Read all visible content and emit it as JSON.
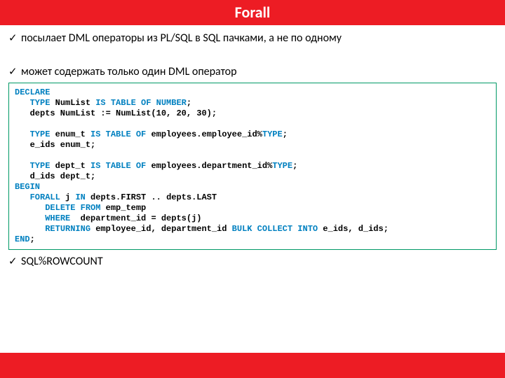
{
  "colors": {
    "accent": "#ed1c24",
    "code_border": "#009966",
    "keyword": "#0080c0",
    "text": "#000000",
    "background": "#ffffff"
  },
  "title": "Forall",
  "bullets": [
    "посылает DML операторы из PL/SQL в SQL пачками, а не по одному",
    "может содержать только один DML оператор",
    "SQL%ROWCOUNT"
  ],
  "code": {
    "lines": [
      [
        [
          "kw",
          "DECLARE"
        ]
      ],
      [
        [
          "plain",
          "   "
        ],
        [
          "kw",
          "TYPE"
        ],
        [
          "plain",
          " NumList "
        ],
        [
          "kw",
          "IS TABLE OF NUMBER"
        ],
        [
          "plain",
          ";"
        ]
      ],
      [
        [
          "plain",
          "   depts NumList := NumList(10, 20, 30);"
        ]
      ],
      [
        [
          "plain",
          ""
        ]
      ],
      [
        [
          "plain",
          "   "
        ],
        [
          "kw",
          "TYPE"
        ],
        [
          "plain",
          " enum_t "
        ],
        [
          "kw",
          "IS TABLE OF"
        ],
        [
          "plain",
          " employees.employee_id%"
        ],
        [
          "kw",
          "TYPE"
        ],
        [
          "plain",
          ";"
        ]
      ],
      [
        [
          "plain",
          "   e_ids enum_t;"
        ]
      ],
      [
        [
          "plain",
          ""
        ]
      ],
      [
        [
          "plain",
          "   "
        ],
        [
          "kw",
          "TYPE"
        ],
        [
          "plain",
          " dept_t "
        ],
        [
          "kw",
          "IS TABLE OF"
        ],
        [
          "plain",
          " employees.department_id%"
        ],
        [
          "kw",
          "TYPE"
        ],
        [
          "plain",
          ";"
        ]
      ],
      [
        [
          "plain",
          "   d_ids dept_t;"
        ]
      ],
      [
        [
          "kw",
          "BEGIN"
        ]
      ],
      [
        [
          "plain",
          "   "
        ],
        [
          "kw",
          "FORALL"
        ],
        [
          "plain",
          " j "
        ],
        [
          "kw",
          "IN"
        ],
        [
          "plain",
          " depts.FIRST .. depts.LAST"
        ]
      ],
      [
        [
          "plain",
          "      "
        ],
        [
          "kw",
          "DELETE FROM"
        ],
        [
          "plain",
          " emp_temp"
        ]
      ],
      [
        [
          "plain",
          "      "
        ],
        [
          "kw",
          "WHERE"
        ],
        [
          "plain",
          "  department_id = depts(j)"
        ]
      ],
      [
        [
          "plain",
          "      "
        ],
        [
          "kw",
          "RETURNING"
        ],
        [
          "plain",
          " employee_id, department_id "
        ],
        [
          "kw",
          "BULK COLLECT INTO"
        ],
        [
          "plain",
          " e_ids, d_ids;"
        ]
      ],
      [
        [
          "kw",
          "END"
        ],
        [
          "plain",
          ";"
        ]
      ]
    ]
  }
}
